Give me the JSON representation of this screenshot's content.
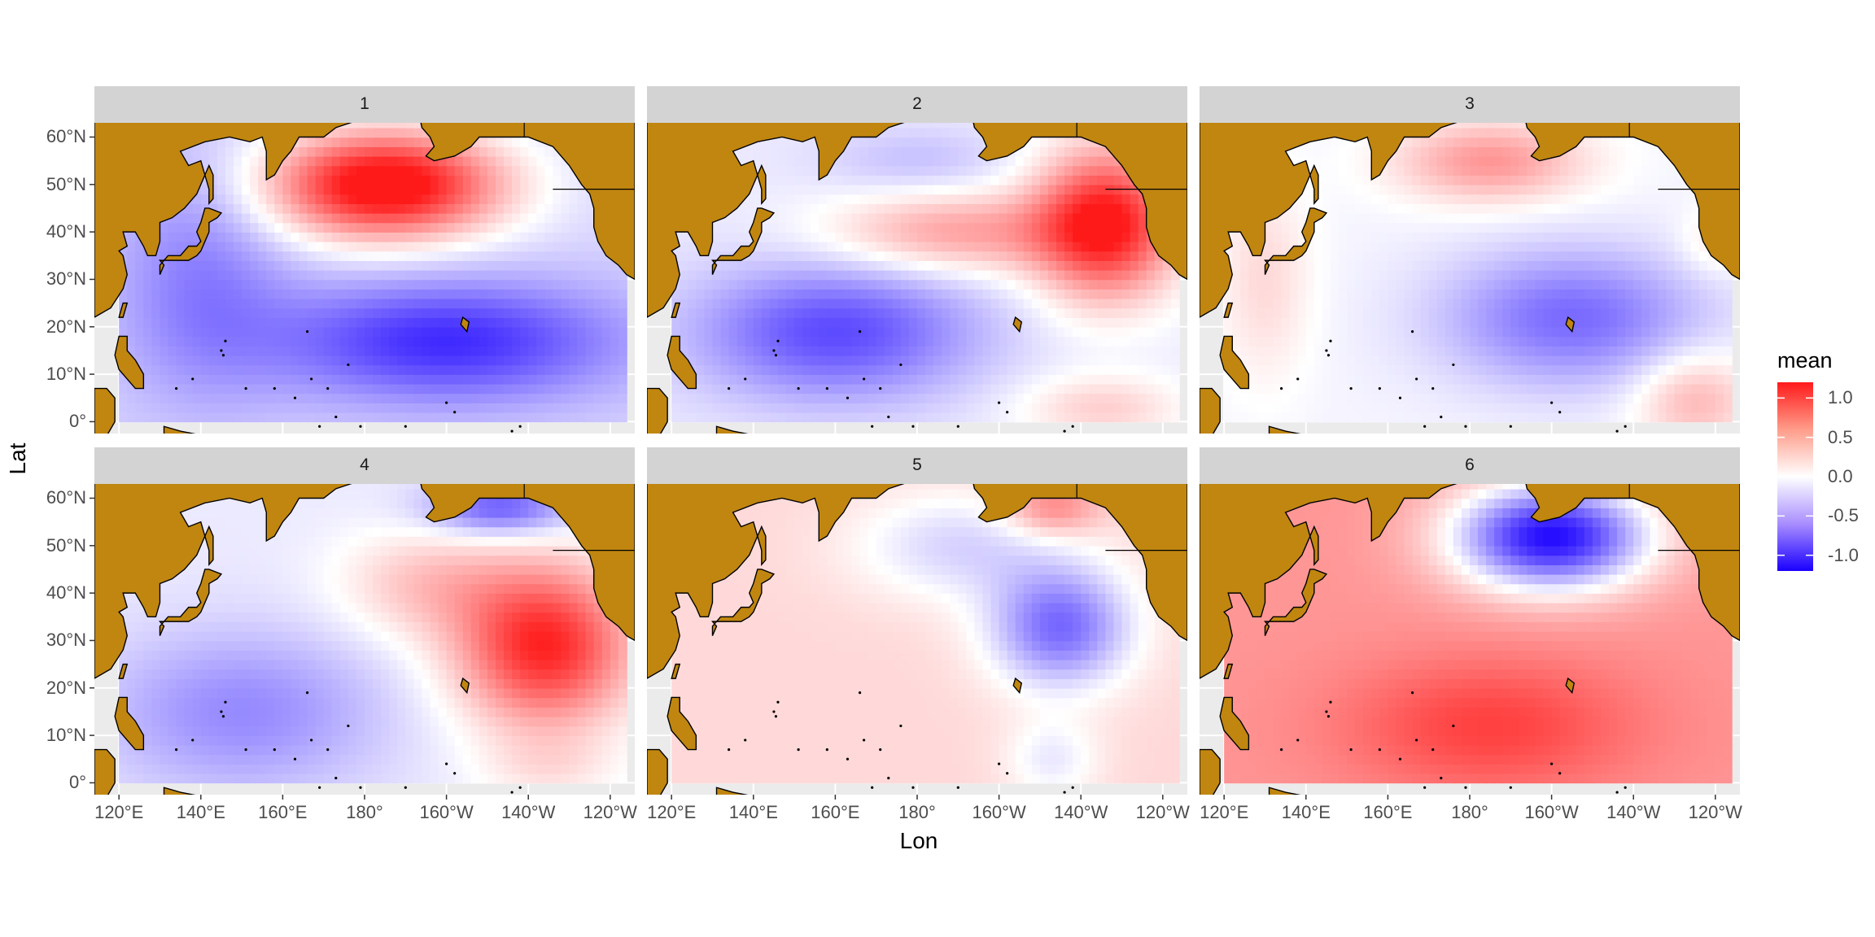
{
  "chart_data": {
    "type": "heatmap",
    "subtype": "faceted-map",
    "xlabel": "Lon",
    "ylabel": "Lat",
    "x_ticks": [
      "120°E",
      "140°E",
      "160°E",
      "180°",
      "160°W",
      "140°W",
      "120°W"
    ],
    "x_tick_values": [
      120,
      140,
      160,
      180,
      200,
      220,
      240
    ],
    "y_ticks": [
      "0°",
      "10°N",
      "20°N",
      "30°N",
      "40°N",
      "50°N",
      "60°N"
    ],
    "y_tick_values": [
      0,
      10,
      20,
      30,
      40,
      50,
      60
    ],
    "xlim": [
      114,
      246
    ],
    "ylim": [
      -2.5,
      63
    ],
    "legend": {
      "title": "mean",
      "position": "right",
      "ticks": [
        "1.0",
        "0.5",
        "0.0",
        "-0.5",
        "-1.0"
      ],
      "tick_values": [
        1.0,
        0.5,
        0.0,
        -0.5,
        -1.0
      ],
      "range": [
        -1.2,
        1.2
      ],
      "low_color": "#1a00ff",
      "mid_color": "#ffffff",
      "high_color": "#ff1a1a"
    },
    "land_color": "#c08610",
    "panel_background": "#ebebeb",
    "strip_background": "#d3d3d3",
    "facets": [
      {
        "label": "1",
        "base": -0.2,
        "blobs": [
          {
            "lon": 185,
            "lat": 50,
            "sx": 20,
            "sy": 8,
            "a": 1.6
          },
          {
            "lon": 200,
            "lat": 17,
            "sx": 30,
            "sy": 9,
            "a": -0.8
          },
          {
            "lon": 140,
            "lat": 30,
            "sx": 15,
            "sy": 18,
            "a": -0.4
          }
        ]
      },
      {
        "label": "2",
        "base": -0.1,
        "blobs": [
          {
            "lon": 226,
            "lat": 42,
            "sx": 12,
            "sy": 11,
            "a": 1.3
          },
          {
            "lon": 190,
            "lat": 40,
            "sx": 22,
            "sy": 6,
            "a": 0.6
          },
          {
            "lon": 160,
            "lat": 19,
            "sx": 24,
            "sy": 10,
            "a": -0.75
          },
          {
            "lon": 180,
            "lat": 55,
            "sx": 16,
            "sy": 5,
            "a": -0.2
          },
          {
            "lon": 225,
            "lat": 3,
            "sx": 14,
            "sy": 5,
            "a": 0.35
          }
        ]
      },
      {
        "label": "3",
        "base": -0.05,
        "blobs": [
          {
            "lon": 205,
            "lat": 22,
            "sx": 22,
            "sy": 10,
            "a": -0.65
          },
          {
            "lon": 185,
            "lat": 55,
            "sx": 16,
            "sy": 6,
            "a": 0.6
          },
          {
            "lon": 235,
            "lat": 5,
            "sx": 10,
            "sy": 7,
            "a": 0.45
          },
          {
            "lon": 130,
            "lat": 30,
            "sx": 8,
            "sy": 15,
            "a": 0.25
          },
          {
            "lon": 240,
            "lat": 38,
            "sx": 6,
            "sy": 5,
            "a": 0.2
          }
        ]
      },
      {
        "label": "4",
        "base": -0.1,
        "blobs": [
          {
            "lon": 224,
            "lat": 29,
            "sx": 15,
            "sy": 12,
            "a": 1.25
          },
          {
            "lon": 195,
            "lat": 42,
            "sx": 15,
            "sy": 8,
            "a": 0.4
          },
          {
            "lon": 150,
            "lat": 15,
            "sx": 24,
            "sy": 12,
            "a": -0.45
          },
          {
            "lon": 213,
            "lat": 58,
            "sx": 12,
            "sy": 4,
            "a": -0.7
          },
          {
            "lon": 225,
            "lat": 3,
            "sx": 12,
            "sy": 5,
            "a": 0.2
          }
        ]
      },
      {
        "label": "5",
        "base": 0.2,
        "blobs": [
          {
            "lon": 215,
            "lat": 33,
            "sx": 12,
            "sy": 9,
            "a": -0.9
          },
          {
            "lon": 190,
            "lat": 50,
            "sx": 18,
            "sy": 8,
            "a": -0.4
          },
          {
            "lon": 213,
            "lat": 58,
            "sx": 8,
            "sy": 4,
            "a": 0.5
          },
          {
            "lon": 213,
            "lat": 5,
            "sx": 8,
            "sy": 6,
            "a": -0.3
          }
        ]
      },
      {
        "label": "6",
        "base": 0.55,
        "blobs": [
          {
            "lon": 200,
            "lat": 52,
            "sx": 17,
            "sy": 8,
            "a": -1.7
          },
          {
            "lon": 185,
            "lat": 12,
            "sx": 25,
            "sy": 10,
            "a": 0.45
          }
        ]
      }
    ]
  }
}
